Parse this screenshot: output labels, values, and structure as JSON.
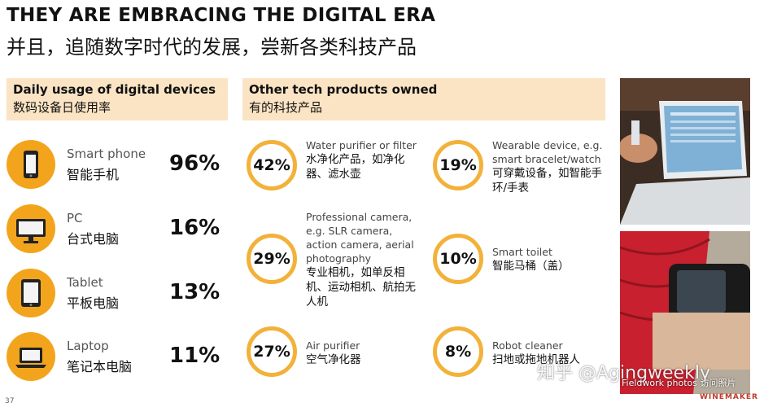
{
  "header": {
    "title_en": "THEY ARE EMBRACING THE DIGITAL ERA",
    "title_cn": "并且，追随数字时代的发展，尝新各类科技产品"
  },
  "left_panel": {
    "title_en": "Daily usage of digital devices",
    "title_cn": "数码设备日使用率",
    "devices": [
      {
        "label_en": "Smart phone",
        "label_cn": "智能手机",
        "percent": "96%",
        "icon": "smartphone-icon"
      },
      {
        "label_en": "PC",
        "label_cn": "台式电脑",
        "percent": "16%",
        "icon": "desktop-pc-icon"
      },
      {
        "label_en": "Tablet",
        "label_cn": "平板电脑",
        "percent": "13%",
        "icon": "tablet-icon"
      },
      {
        "label_en": "Laptop",
        "label_cn": "笔记本电脑",
        "percent": "11%",
        "icon": "laptop-icon"
      }
    ]
  },
  "right_panel": {
    "title_en": "Other tech products owned",
    "title_cn": "有的科技产品",
    "products": [
      {
        "percent": "42%",
        "label_en": "Water purifier or filter",
        "label_cn": "水净化产品，如净化器、滤水壶"
      },
      {
        "percent": "19%",
        "label_en": "Wearable device, e.g. smart bracelet/watch",
        "label_cn": "可穿戴设备，如智能手环/手表"
      },
      {
        "percent": "29%",
        "label_en": "Professional camera, e.g. SLR camera, action camera, aerial photography",
        "label_cn": "专业相机，如单反相机、运动相机、航拍无人机"
      },
      {
        "percent": "10%",
        "label_en": "Smart toilet",
        "label_cn": "智能马桶（盖）"
      },
      {
        "percent": "27%",
        "label_en": "Air purifier",
        "label_cn": "空气净化器"
      },
      {
        "percent": "8%",
        "label_en": "Robot cleaner",
        "label_cn": "扫地或拖地机器人"
      }
    ]
  },
  "footer": {
    "page_number": "37",
    "watermark": "知乎 @Agingweekly",
    "photo_credit": "Fieldwork photos 访问照片",
    "logo": "WINEMAKER"
  },
  "colors": {
    "accent_orange": "#f2a51c",
    "panel_header_bg": "#fbe4c4",
    "ring": "#f2b23a"
  }
}
